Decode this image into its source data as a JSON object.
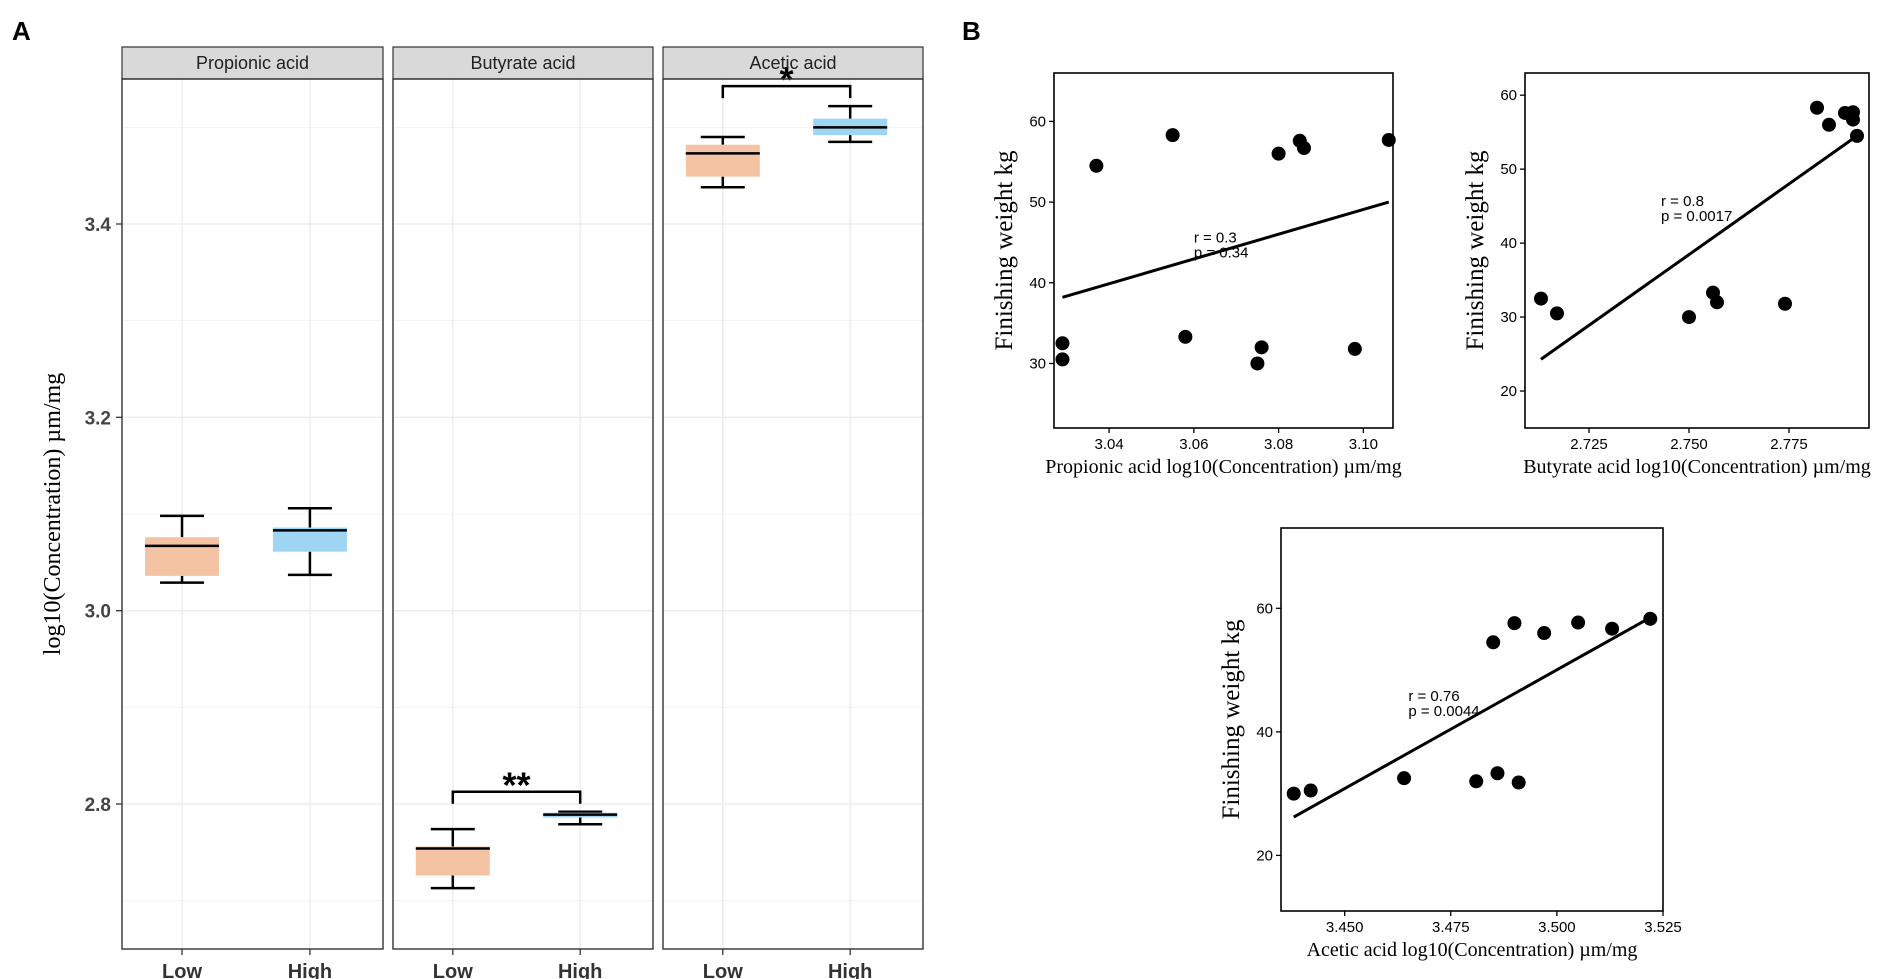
{
  "panel_a_letter": "A",
  "panel_b_letter": "B",
  "colors": {
    "low": "#f4c3a3",
    "high": "#9fd5f4",
    "strip": "#d9d9d9",
    "grid": "#ebebeb",
    "ink": "#000000"
  },
  "chart_data": [
    {
      "type": "box",
      "ylabel": "log10(Concentration) µm/mg",
      "ylim": [
        2.65,
        3.55
      ],
      "yticks": [
        2.8,
        3.0,
        3.2,
        3.4
      ],
      "ytick_labels": [
        "2.8",
        "3.0",
        "3.2",
        "3.4"
      ],
      "categories": [
        "Low",
        "High"
      ],
      "facets": [
        {
          "title": "Propionic acid",
          "boxes": [
            {
              "group": "Low",
              "min": 3.029,
              "q1": 3.036,
              "median": 3.067,
              "q3": 3.076,
              "max": 3.098
            },
            {
              "group": "High",
              "min": 3.037,
              "q1": 3.061,
              "median": 3.083,
              "q3": 3.086,
              "max": 3.106
            }
          ],
          "significance": ""
        },
        {
          "title": "Butyrate acid",
          "boxes": [
            {
              "group": "Low",
              "min": 2.713,
              "q1": 2.726,
              "median": 2.754,
              "q3": 2.756,
              "max": 2.774
            },
            {
              "group": "High",
              "min": 2.779,
              "q1": 2.786,
              "median": 2.789,
              "q3": 2.791,
              "max": 2.792
            }
          ],
          "significance": "**"
        },
        {
          "title": "Acetic acid",
          "boxes": [
            {
              "group": "Low",
              "min": 3.438,
              "q1": 3.449,
              "median": 3.473,
              "q3": 3.482,
              "max": 3.49
            },
            {
              "group": "High",
              "min": 3.485,
              "q1": 3.492,
              "median": 3.5,
              "q3": 3.509,
              "max": 3.522
            }
          ],
          "significance": "*"
        }
      ]
    },
    {
      "type": "scatter",
      "xlabel": "Propionic acid log10(Concentration) µm/mg",
      "ylabel": "Finishing weight kg",
      "xlim": [
        3.027,
        3.107
      ],
      "ylim": [
        22,
        66
      ],
      "xticks": [
        3.04,
        3.06,
        3.08,
        3.1
      ],
      "xtick_labels": [
        "3.04",
        "3.06",
        "3.08",
        "3.10"
      ],
      "yticks": [
        30,
        40,
        50,
        60
      ],
      "ytick_labels": [
        "30",
        "40",
        "50",
        "60"
      ],
      "points": [
        [
          3.029,
          30.5
        ],
        [
          3.029,
          32.5
        ],
        [
          3.037,
          54.5
        ],
        [
          3.055,
          58.3
        ],
        [
          3.058,
          33.3
        ],
        [
          3.075,
          30.0
        ],
        [
          3.076,
          32.0
        ],
        [
          3.08,
          56.0
        ],
        [
          3.085,
          57.6
        ],
        [
          3.086,
          56.7
        ],
        [
          3.098,
          31.8
        ],
        [
          3.106,
          57.7
        ]
      ],
      "fit": {
        "x": [
          3.029,
          3.106
        ],
        "y": [
          38.2,
          50.0
        ]
      },
      "annotation": [
        "r = 0.3",
        "p = 0.34"
      ],
      "annotation_at": [
        3.06,
        45
      ]
    },
    {
      "type": "scatter",
      "xlabel": "Butyrate acid log10(Concentration) µm/mg",
      "ylabel": "Finishing weight kg",
      "xlim": [
        2.709,
        2.795
      ],
      "ylim": [
        15,
        63
      ],
      "xticks": [
        2.725,
        2.75,
        2.775
      ],
      "xtick_labels": [
        "2.725",
        "2.750",
        "2.775"
      ],
      "yticks": [
        20,
        30,
        40,
        50,
        60
      ],
      "ytick_labels": [
        "20",
        "30",
        "40",
        "50",
        "60"
      ],
      "points": [
        [
          2.713,
          32.5
        ],
        [
          2.717,
          30.5
        ],
        [
          2.75,
          30.0
        ],
        [
          2.756,
          33.3
        ],
        [
          2.757,
          32.0
        ],
        [
          2.774,
          31.8
        ],
        [
          2.782,
          58.3
        ],
        [
          2.785,
          56.0
        ],
        [
          2.789,
          57.6
        ],
        [
          2.791,
          57.7
        ],
        [
          2.791,
          56.7
        ],
        [
          2.792,
          54.5
        ]
      ],
      "fit": {
        "x": [
          2.713,
          2.792
        ],
        "y": [
          24.3,
          54.5
        ]
      },
      "annotation": [
        "r = 0.8",
        "p = 0.0017"
      ],
      "annotation_at": [
        2.743,
        45
      ]
    },
    {
      "type": "scatter",
      "xlabel": "Acetic acid log10(Concentration) µm/mg",
      "ylabel": "Finishing weight kg",
      "xlim": [
        3.435,
        3.525
      ],
      "ylim": [
        11,
        73
      ],
      "xticks": [
        3.45,
        3.475,
        3.5,
        3.525
      ],
      "xtick_labels": [
        "3.450",
        "3.475",
        "3.500",
        "3.525"
      ],
      "yticks": [
        20,
        40,
        60
      ],
      "ytick_labels": [
        "20",
        "40",
        "60"
      ],
      "points": [
        [
          3.438,
          30.0
        ],
        [
          3.442,
          30.5
        ],
        [
          3.464,
          32.5
        ],
        [
          3.481,
          32.0
        ],
        [
          3.485,
          54.5
        ],
        [
          3.486,
          33.3
        ],
        [
          3.49,
          57.6
        ],
        [
          3.491,
          31.8
        ],
        [
          3.497,
          56.0
        ],
        [
          3.505,
          57.7
        ],
        [
          3.513,
          56.7
        ],
        [
          3.522,
          58.3
        ]
      ],
      "fit": {
        "x": [
          3.438,
          3.522
        ],
        "y": [
          26.2,
          58.5
        ]
      },
      "annotation": [
        "r = 0.76",
        "p = 0.0044"
      ],
      "annotation_at": [
        3.465,
        45
      ]
    }
  ]
}
